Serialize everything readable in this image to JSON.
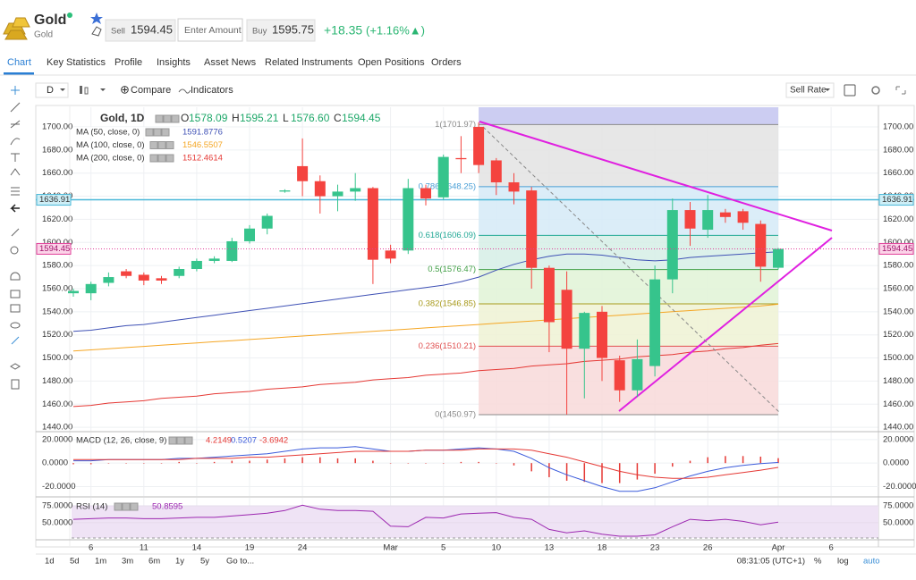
{
  "header": {
    "name": "Gold",
    "subtitle": "Gold",
    "sell_label": "Sell",
    "sell_price": "1594.45",
    "amount_placeholder": "Enter Amount",
    "buy_label": "Buy",
    "buy_price": "1595.75",
    "change": "+18.35",
    "change_percent": "(+1.16%▲)"
  },
  "tabs": [
    "Chart",
    "Key Statistics",
    "Profile",
    "Insights",
    "Asset News",
    "Related Instruments",
    "Open Positions",
    "Orders"
  ],
  "toolbar": {
    "interval": "D",
    "compare": "Compare",
    "indicators": "Indicators",
    "price_mode": "Sell Rate"
  },
  "chart_data": {
    "type": "candlestick",
    "name": "Gold, 1D",
    "ohlc_names": [
      "O",
      "H",
      "L",
      "C"
    ],
    "ohlc_labels": [
      "1578.09",
      "1595.21",
      "1576.60",
      "1594.45"
    ],
    "up_color": "#36c48c",
    "down_color": "#f4433f",
    "categories": [
      null,
      "6",
      null,
      null,
      "11",
      null,
      null,
      "14",
      null,
      null,
      "19",
      null,
      null,
      "24",
      null,
      null,
      null,
      null,
      "Mar",
      null,
      null,
      "5",
      null,
      null,
      "10",
      null,
      null,
      "13",
      null,
      null,
      "18",
      null,
      null,
      "23",
      null,
      null,
      "26",
      null,
      null,
      null,
      "Apr",
      null,
      null,
      "6"
    ],
    "open": [
      1556,
      1556,
      1565,
      1575,
      1572,
      1569,
      1571,
      1577,
      1584,
      1584,
      1601,
      1612,
      1644,
      1666,
      1653,
      1640,
      1644,
      1647,
      1593,
      1593,
      1647,
      1639,
      1673,
      1700,
      1671,
      1652,
      1645,
      1578,
      1559,
      1508,
      1540,
      1498,
      1472,
      1493,
      1568,
      1628,
      1611,
      1626,
      1627,
      1616,
      1578.09,
      null,
      null,
      null
    ],
    "high": [
      1560,
      1566,
      1574,
      1577,
      1574,
      1571,
      1579,
      1586,
      1588,
      1604,
      1615,
      1625,
      1646,
      1690,
      1658,
      1650,
      1660,
      1648,
      1598,
      1655,
      1650,
      1676,
      1692,
      1704,
      1673,
      1660,
      1648,
      1580,
      1575,
      1540,
      1545,
      1502,
      1516,
      1580,
      1638,
      1635,
      1641,
      1629,
      1629,
      1619,
      1595.21,
      null,
      null,
      null
    ],
    "low": [
      1553,
      1550,
      1562,
      1569,
      1563,
      1564,
      1569,
      1575,
      1582,
      1583,
      1599,
      1607,
      1643,
      1640,
      1625,
      1627,
      1636,
      1564,
      1582,
      1590,
      1632,
      1637,
      1660,
      1660,
      1641,
      1633,
      1560,
      1505,
      1451,
      1465,
      1480,
      1462,
      1466,
      1484,
      1556,
      1597,
      1604,
      1617,
      1611,
      1566,
      1576.6,
      null,
      null,
      null
    ],
    "close": [
      1558,
      1564,
      1570,
      1571,
      1567,
      1567,
      1577,
      1584,
      1586,
      1601,
      1612,
      1623,
      1645,
      1653,
      1640,
      1644,
      1647,
      1585,
      1586,
      1647,
      1638,
      1674,
      1672,
      1667,
      1652,
      1644,
      1578,
      1531,
      1508,
      1539,
      1500,
      1472,
      1499,
      1568,
      1628,
      1612,
      1628,
      1622,
      1617,
      1579,
      1594.45,
      null,
      null,
      null
    ],
    "ylim": [
      1437,
      1717
    ],
    "yticks": [
      {
        "value": 1440,
        "label": "1440.00"
      },
      {
        "value": 1460,
        "label": "1460.00"
      },
      {
        "value": 1480,
        "label": "1480.00"
      },
      {
        "value": 1500,
        "label": "1500.00"
      },
      {
        "value": 1520,
        "label": "1520.00"
      },
      {
        "value": 1540,
        "label": "1540.00"
      },
      {
        "value": 1560,
        "label": "1560.00"
      },
      {
        "value": 1580,
        "label": "1580.00"
      },
      {
        "value": 1600,
        "label": "1600.00"
      },
      {
        "value": 1620,
        "label": "1620.00"
      },
      {
        "value": 1640,
        "label": "1640.00"
      },
      {
        "value": 1660,
        "label": "1660.00"
      },
      {
        "value": 1680,
        "label": "1680.00"
      },
      {
        "value": 1700,
        "label": "1700.00"
      }
    ],
    "grid": true,
    "horizontal_line": 1636.91,
    "horizontal_line_color": "#4ab8d8",
    "current_price_color": "#e0409a",
    "indicators": [
      {
        "name": "MA (50, close, 0)",
        "color": "#3f51b5",
        "values": [
          1523,
          1524,
          1526,
          1528,
          1529,
          1531,
          1533,
          1535,
          1537,
          1539,
          1541,
          1543,
          1545,
          1547,
          1549,
          1551,
          1553,
          1555,
          1557,
          1559,
          1561,
          1563,
          1566,
          1570,
          1576,
          1581,
          1585,
          1588,
          1590,
          1590,
          1589,
          1587,
          1585,
          1584,
          1585,
          1587,
          1588,
          1589,
          1590,
          1591,
          1591.8776,
          null,
          null,
          null
        ]
      },
      {
        "name": "MA (100, close, 0)",
        "color": "#f5a623",
        "values": [
          1506,
          1507,
          1508,
          1509,
          1510,
          1511,
          1512,
          1513,
          1514,
          1515,
          1516,
          1517,
          1518,
          1519,
          1520,
          1521,
          1522,
          1523,
          1524,
          1525,
          1526,
          1527,
          1528,
          1529,
          1530,
          1531,
          1532,
          1533,
          1534,
          1535,
          1536,
          1537,
          1538,
          1539,
          1540,
          1541,
          1542,
          1543,
          1544,
          1545,
          1546.5507,
          null,
          null,
          null
        ]
      },
      {
        "name": "MA (200, close, 0)",
        "color": "#e53935",
        "values": [
          1458,
          1459,
          1461,
          1462,
          1463,
          1465,
          1466,
          1467,
          1469,
          1470,
          1471,
          1473,
          1474,
          1475,
          1477,
          1478,
          1479,
          1481,
          1482,
          1483,
          1485,
          1486,
          1487,
          1489,
          1490,
          1491,
          1493,
          1494,
          1495,
          1497,
          1498,
          1499,
          1501,
          1502,
          1503,
          1505,
          1506,
          1508,
          1509,
          1511,
          1512.4614,
          null,
          null,
          null
        ]
      }
    ],
    "fibonacci": {
      "levels": [
        {
          "value": 1701.97,
          "label": "1(1701.97)",
          "color": "#8a8a8a",
          "fill": "#e3e3e3"
        },
        {
          "value": 1648.25,
          "label": "0.786(1648.25)",
          "color": "#4a9fd6",
          "fill": "#d5eaf7"
        },
        {
          "value": 1606.09,
          "label": "0.618(1606.09)",
          "color": "#22a896",
          "fill": "#d6efe6"
        },
        {
          "value": 1576.47,
          "label": "0.5(1576.47)",
          "color": "#43a047",
          "fill": "#e0f3d6"
        },
        {
          "value": 1546.85,
          "label": "0.382(1546.85)",
          "color": "#a89a1c",
          "fill": "#eef2d4"
        },
        {
          "value": 1510.21,
          "label": "0.236(1510.21)",
          "color": "#e05050",
          "fill": "#f8d9d9"
        },
        {
          "value": 1450.97,
          "label": "0(1450.97)",
          "color": "#8a8a8a",
          "fill": "#ffffff"
        }
      ]
    },
    "macd": {
      "name": "MACD (12, 26, close, 9)",
      "ylim": [
        -28,
        26
      ],
      "yticks": [
        {
          "value": 20,
          "label": "20.0000"
        },
        {
          "value": 0,
          "label": "0.0000"
        },
        {
          "value": -20,
          "label": "-20.0000"
        }
      ],
      "histogram": {
        "color": "#e53935",
        "values": [
          -1,
          -1,
          0,
          0,
          0,
          0,
          1,
          0,
          1,
          2,
          2,
          3,
          4,
          5,
          5,
          4,
          4,
          2,
          0,
          0,
          0,
          0,
          1,
          1,
          0,
          -2,
          -7,
          -12,
          -15,
          -16,
          -17,
          -17,
          -14,
          -9,
          -3,
          2,
          5,
          6,
          6,
          5.5,
          4.2149,
          null,
          null,
          null
        ]
      },
      "macd": {
        "color": "#3b5bdb",
        "values": [
          2,
          2,
          3,
          3,
          3,
          3,
          4,
          4,
          5,
          6,
          7,
          8,
          10,
          12,
          13,
          13,
          14,
          12,
          10,
          10,
          11,
          11,
          12,
          13,
          12,
          10,
          4,
          -4,
          -10,
          -15,
          -20,
          -24,
          -24,
          -21,
          -16,
          -11,
          -7,
          -4,
          -2,
          -0.5,
          0.5207,
          null,
          null,
          null
        ]
      },
      "signal": {
        "color": "#e53935",
        "values": [
          3,
          3,
          3,
          3,
          3,
          3,
          3,
          4,
          4,
          4,
          5,
          5,
          6,
          7,
          8,
          9,
          10,
          10,
          10,
          10,
          11,
          11,
          11,
          12,
          12,
          12,
          11,
          8,
          5,
          1,
          -3,
          -7,
          -10,
          -12,
          -13,
          -13,
          -12,
          -10,
          -8,
          -6,
          -3.6942,
          null,
          null,
          null
        ]
      }
    },
    "rsi": {
      "name": "RSI (14)",
      "color": "#9c27b0",
      "ylim": [
        26,
        87
      ],
      "yticks": [
        {
          "value": 75,
          "label": "75.0000"
        },
        {
          "value": 50,
          "label": "50.0000"
        }
      ],
      "values": [
        55,
        56,
        57,
        57,
        56,
        56,
        57,
        58,
        58,
        60,
        62,
        64,
        68,
        76,
        70,
        68,
        68,
        67,
        45,
        44,
        58,
        57,
        63,
        64,
        65,
        58,
        55,
        40,
        35,
        38,
        33,
        30,
        30,
        32,
        44,
        55,
        53,
        55,
        52,
        47,
        50.8595,
        null,
        null,
        null
      ]
    }
  },
  "footer": {
    "ranges": [
      "1d",
      "5d",
      "1m",
      "3m",
      "6m",
      "1y",
      "5y"
    ],
    "goto": "Go to...",
    "time": "08:31:05 (UTC+1)",
    "percent": "%",
    "log": "log",
    "auto": "auto"
  }
}
